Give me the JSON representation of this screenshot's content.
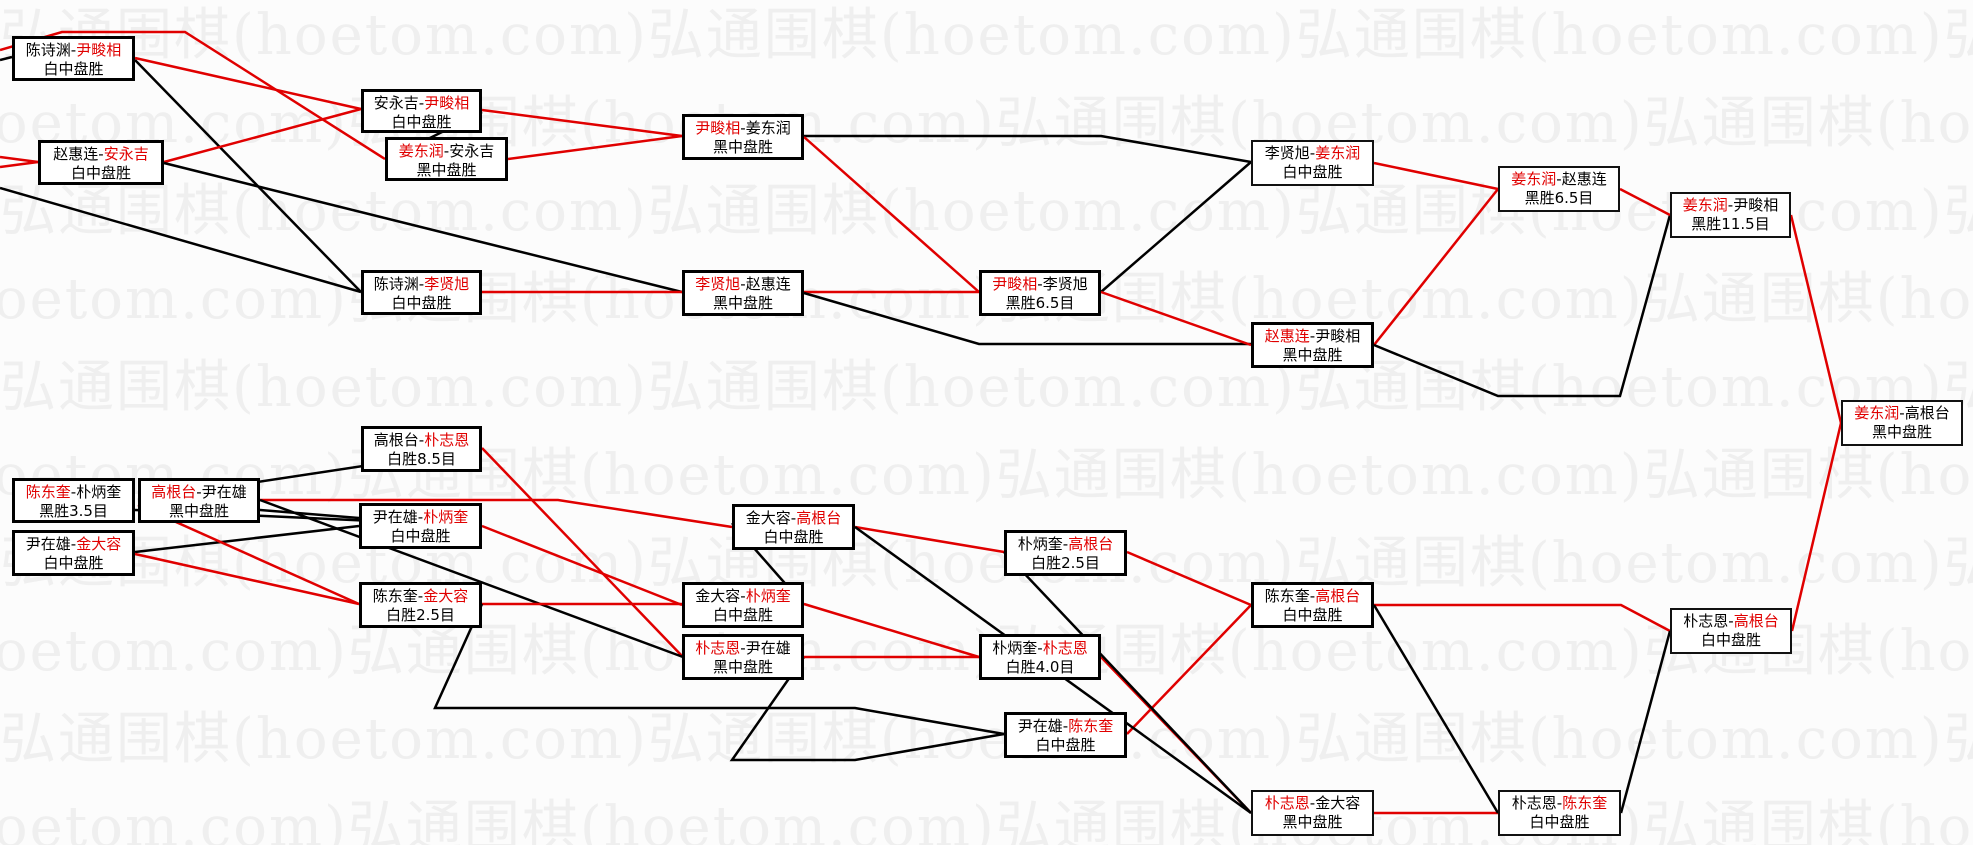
{
  "watermark": "弘通围棋(hoetom.com)",
  "colors": {
    "winner": "#e00000",
    "loser_line": "#000000",
    "winner_line": "#e00000"
  },
  "matches": [
    {
      "p1": "陈诗渊",
      "p2": "尹畯相",
      "winner": 2,
      "result": "白中盘胜"
    },
    {
      "p1": "赵惠连",
      "p2": "安永吉",
      "winner": 2,
      "result": "白中盘胜"
    },
    {
      "p1": "安永吉",
      "p2": "尹畯相",
      "winner": 2,
      "result": "白中盘胜"
    },
    {
      "p1": "姜东润",
      "p2": "安永吉",
      "winner": 1,
      "result": "黑中盘胜"
    },
    {
      "p1": "陈诗渊",
      "p2": "李贤旭",
      "winner": 2,
      "result": "白中盘胜"
    },
    {
      "p1": "尹畯相",
      "p2": "姜东润",
      "winner": 1,
      "result": "黑中盘胜"
    },
    {
      "p1": "李贤旭",
      "p2": "赵惠连",
      "winner": 1,
      "result": "黑中盘胜"
    },
    {
      "p1": "尹畯相",
      "p2": "李贤旭",
      "winner": 1,
      "result": "黑胜6.5目"
    },
    {
      "p1": "李贤旭",
      "p2": "姜东润",
      "winner": 2,
      "result": "白中盘胜"
    },
    {
      "p1": "赵惠连",
      "p2": "尹畯相",
      "winner": 1,
      "result": "黑中盘胜"
    },
    {
      "p1": "姜东润",
      "p2": "赵惠连",
      "winner": 1,
      "result": "黑胜6.5目"
    },
    {
      "p1": "姜东润",
      "p2": "尹畯相",
      "winner": 1,
      "result": "黑胜11.5目"
    },
    {
      "p1": "姜东润",
      "p2": "高根台",
      "winner": 1,
      "result": "黑中盘胜"
    },
    {
      "p1": "高根台",
      "p2": "朴志恩",
      "winner": 2,
      "result": "白胜8.5目"
    },
    {
      "p1": "陈东奎",
      "p2": "朴炳奎",
      "winner": 1,
      "result": "黑胜3.5目"
    },
    {
      "p1": "高根台",
      "p2": "尹在雄",
      "winner": 1,
      "result": "黑中盘胜"
    },
    {
      "p1": "尹在雄",
      "p2": "金大容",
      "winner": 2,
      "result": "白中盘胜"
    },
    {
      "p1": "尹在雄",
      "p2": "朴炳奎",
      "winner": 2,
      "result": "白中盘胜"
    },
    {
      "p1": "陈东奎",
      "p2": "金大容",
      "winner": 2,
      "result": "白胜2.5目"
    },
    {
      "p1": "金大容",
      "p2": "高根台",
      "winner": 2,
      "result": "白中盘胜"
    },
    {
      "p1": "金大容",
      "p2": "朴炳奎",
      "winner": 2,
      "result": "白中盘胜"
    },
    {
      "p1": "朴志恩",
      "p2": "尹在雄",
      "winner": 1,
      "result": "黑中盘胜"
    },
    {
      "p1": "朴炳奎",
      "p2": "高根台",
      "winner": 2,
      "result": "白胜2.5目"
    },
    {
      "p1": "朴炳奎",
      "p2": "朴志恩",
      "winner": 2,
      "result": "白胜4.0目"
    },
    {
      "p1": "尹在雄",
      "p2": "陈东奎",
      "winner": 2,
      "result": "白中盘胜"
    },
    {
      "p1": "陈东奎",
      "p2": "高根台",
      "winner": 2,
      "result": "白中盘胜"
    },
    {
      "p1": "朴志恩",
      "p2": "金大容",
      "winner": 1,
      "result": "黑中盘胜"
    },
    {
      "p1": "朴志恩",
      "p2": "陈东奎",
      "winner": 2,
      "result": "白中盘胜"
    },
    {
      "p1": "朴志恩",
      "p2": "高根台",
      "winner": 2,
      "result": "白中盘胜"
    }
  ]
}
